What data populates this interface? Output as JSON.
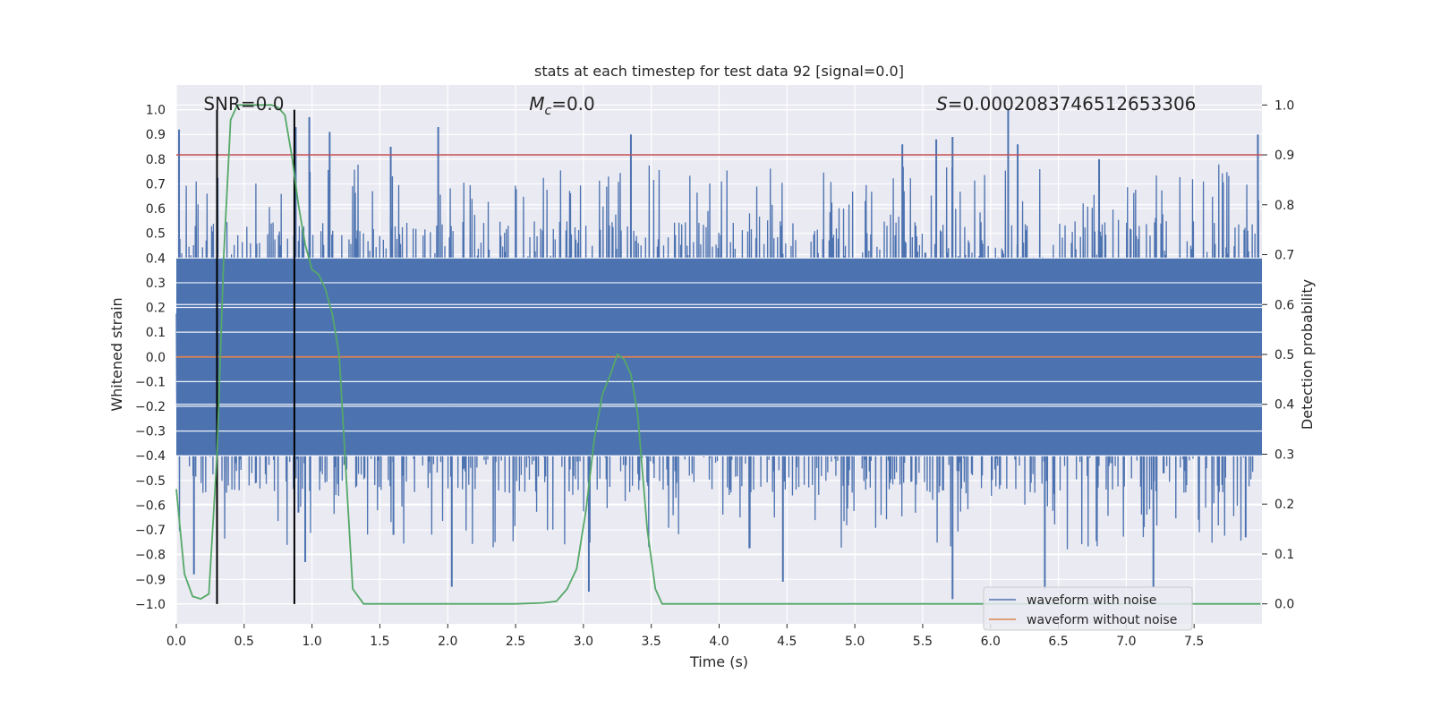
{
  "chart_data": {
    "type": "line",
    "title": "stats at each timestep for test data 92 [signal=0.0]",
    "xlabel": "Time (s)",
    "ylabel": "Whitened strain",
    "y2label": "Detection probability",
    "xlim": [
      0.0,
      8.0
    ],
    "ylim": [
      -1.08,
      1.1
    ],
    "y2lim": [
      -0.04,
      1.04
    ],
    "x_ticks": [
      0.0,
      0.5,
      1.0,
      1.5,
      2.0,
      2.5,
      3.0,
      3.5,
      4.0,
      4.5,
      5.0,
      5.5,
      6.0,
      6.5,
      7.0,
      7.5
    ],
    "x_tick_labels": [
      "0.0",
      "0.5",
      "1.0",
      "1.5",
      "2.0",
      "2.5",
      "3.0",
      "3.5",
      "4.0",
      "4.5",
      "5.0",
      "5.5",
      "6.0",
      "6.5",
      "7.0",
      "7.5"
    ],
    "y_ticks": [
      1.0,
      0.9,
      0.8,
      0.7,
      0.6,
      0.5,
      0.4,
      0.3,
      0.2,
      0.1,
      0.0,
      -0.1,
      -0.2,
      -0.3,
      -0.4,
      -0.5,
      -0.6,
      -0.7,
      -0.8,
      -0.9,
      -1.0
    ],
    "y_tick_labels": [
      "1.0",
      "0.9",
      "0.8",
      "0.7",
      "0.6",
      "0.5",
      "0.4",
      "0.3",
      "0.2",
      "0.1",
      "0.0",
      "−0.1",
      "−0.2",
      "−0.3",
      "−0.4",
      "−0.5",
      "−0.6",
      "−0.7",
      "−0.8",
      "−0.9",
      "−1.0"
    ],
    "y2_ticks": [
      1.0,
      0.9,
      0.8,
      0.7,
      0.6,
      0.5,
      0.4,
      0.3,
      0.2,
      0.1,
      0.0
    ],
    "y2_tick_labels": [
      "1.0",
      "0.9",
      "0.8",
      "0.7",
      "0.6",
      "0.5",
      "0.4",
      "0.3",
      "0.2",
      "0.1",
      "0.0"
    ],
    "grid": true,
    "legend_position": "bottom-right",
    "annotations": {
      "snr": "SNR=0.0",
      "mc_symbol": "M",
      "mc_sub": "c",
      "mc_value": "=0.0",
      "s_symbol": "S",
      "s_value": "=0.0002083746512653306"
    },
    "series": [
      {
        "name": "waveform with noise",
        "color": "#4c72b0",
        "noise_band": [
          -0.4,
          0.4
        ],
        "spike_peaks": [
          {
            "x": 0.02,
            "y": 0.92
          },
          {
            "x": 0.3,
            "y": 0.63
          },
          {
            "x": 0.88,
            "y": 0.93
          },
          {
            "x": 0.98,
            "y": 0.97
          },
          {
            "x": 1.13,
            "y": 0.91
          },
          {
            "x": 1.58,
            "y": 0.85
          },
          {
            "x": 1.93,
            "y": 0.93
          },
          {
            "x": 3.35,
            "y": 0.9
          },
          {
            "x": 5.35,
            "y": 0.86
          },
          {
            "x": 5.6,
            "y": 0.88
          },
          {
            "x": 5.72,
            "y": 0.89
          },
          {
            "x": 6.13,
            "y": 1.0
          },
          {
            "x": 6.2,
            "y": 0.86
          },
          {
            "x": 6.8,
            "y": 0.8
          },
          {
            "x": 7.97,
            "y": 0.9
          },
          {
            "x": 0.13,
            "y": -0.88
          },
          {
            "x": 0.9,
            "y": -0.63
          },
          {
            "x": 0.95,
            "y": -0.83
          },
          {
            "x": 1.6,
            "y": -0.72
          },
          {
            "x": 2.03,
            "y": -0.93
          },
          {
            "x": 3.04,
            "y": -0.95
          },
          {
            "x": 4.47,
            "y": -0.91
          },
          {
            "x": 5.72,
            "y": -0.98
          },
          {
            "x": 6.4,
            "y": -0.94
          },
          {
            "x": 7.2,
            "y": -0.93
          },
          {
            "x": 7.88,
            "y": -0.73
          }
        ]
      },
      {
        "name": "waveform without noise",
        "color": "#dd8452",
        "x": [
          0.0,
          8.0
        ],
        "y": [
          0.0,
          0.0
        ]
      },
      {
        "name": "",
        "axis": "right",
        "color": "#55a868",
        "x": [
          0.0,
          0.06,
          0.12,
          0.18,
          0.24,
          0.3,
          0.35,
          0.4,
          0.45,
          0.5,
          0.55,
          0.6,
          0.65,
          0.7,
          0.75,
          0.8,
          0.85,
          0.9,
          0.95,
          1.0,
          1.05,
          1.1,
          1.15,
          1.2,
          1.3,
          1.38,
          1.5,
          2.0,
          2.5,
          2.7,
          2.8,
          2.88,
          2.95,
          3.02,
          3.08,
          3.14,
          3.2,
          3.25,
          3.3,
          3.35,
          3.4,
          3.47,
          3.53,
          3.58,
          3.7,
          4.0,
          5.0,
          6.0,
          7.0,
          7.99
        ],
        "y": [
          0.23,
          0.06,
          0.015,
          0.01,
          0.02,
          0.3,
          0.7,
          0.97,
          1.0,
          1.0,
          1.0,
          1.0,
          1.0,
          1.0,
          0.995,
          0.98,
          0.9,
          0.8,
          0.72,
          0.67,
          0.66,
          0.63,
          0.58,
          0.5,
          0.03,
          0.0,
          0.0,
          0.0,
          0.0,
          0.002,
          0.005,
          0.03,
          0.07,
          0.19,
          0.33,
          0.42,
          0.46,
          0.5,
          0.49,
          0.46,
          0.38,
          0.15,
          0.03,
          0.0,
          0.0,
          0.0,
          0.0,
          0.0,
          0.0,
          0.0
        ]
      }
    ],
    "hlines": [
      {
        "axis": "right",
        "y": 0.9,
        "color": "#c44e52"
      }
    ],
    "vlines": [
      {
        "x": 0.3,
        "color": "#000000"
      },
      {
        "x": 0.87,
        "color": "#000000"
      }
    ]
  }
}
